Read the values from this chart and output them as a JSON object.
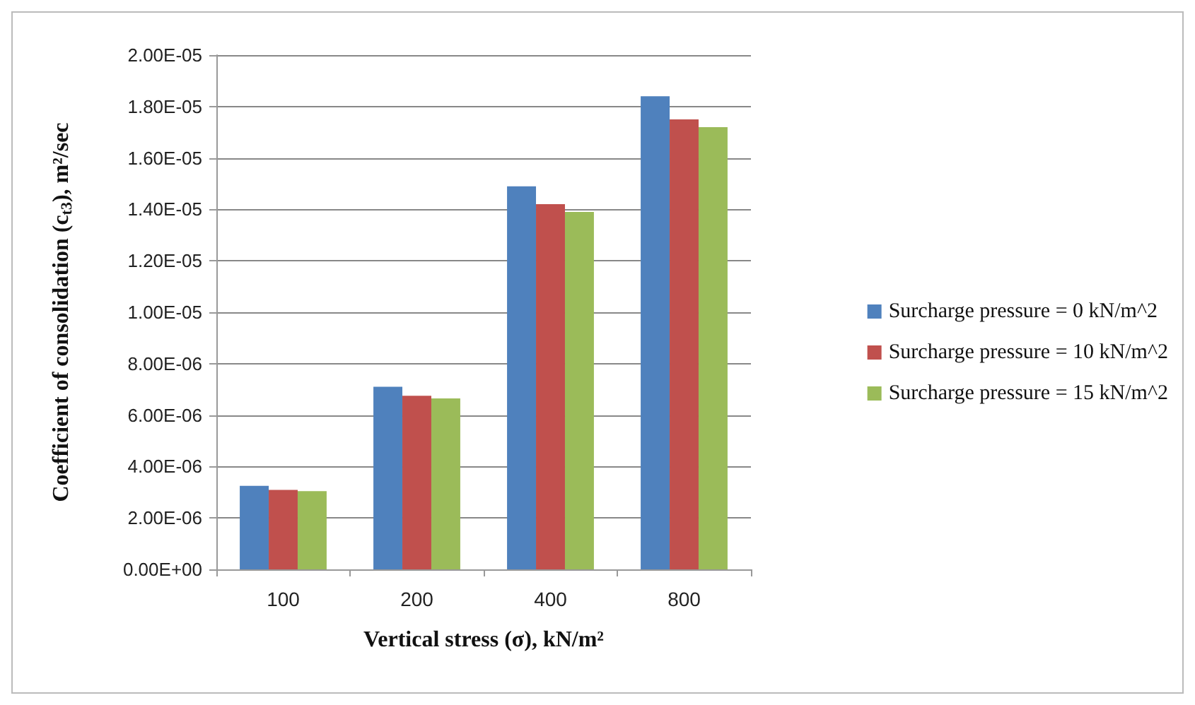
{
  "chart_data": {
    "type": "bar",
    "xlabel": "Vertical stress (σ), kN/m²",
    "ylabel": "Coefficient of consolidation (c$_{t3}$), m²/sec",
    "categories": [
      "100",
      "200",
      "400",
      "800"
    ],
    "series": [
      {
        "name": "Surcharge pressure = 0 kN/m^2",
        "color": "#4f81bd",
        "values": [
          3.25e-06,
          7.1e-06,
          1.49e-05,
          1.84e-05
        ]
      },
      {
        "name": "Surcharge pressure = 10 kN/m^2",
        "color": "#c0504d",
        "values": [
          3.09e-06,
          6.75e-06,
          1.42e-05,
          1.75e-05
        ]
      },
      {
        "name": "Surcharge pressure = 15 kN/m^2",
        "color": "#9bbb59",
        "values": [
          3.04e-06,
          6.65e-06,
          1.39e-05,
          1.72e-05
        ]
      }
    ],
    "ylim": [
      0,
      2e-05
    ],
    "yticks": [
      {
        "value": 0,
        "label": "0.00E+00"
      },
      {
        "value": 2e-06,
        "label": "2.00E-06"
      },
      {
        "value": 4e-06,
        "label": "4.00E-06"
      },
      {
        "value": 6e-06,
        "label": "6.00E-06"
      },
      {
        "value": 8e-06,
        "label": "8.00E-06"
      },
      {
        "value": 1e-05,
        "label": "1.00E-05"
      },
      {
        "value": 1.2e-05,
        "label": "1.20E-05"
      },
      {
        "value": 1.4e-05,
        "label": "1.40E-05"
      },
      {
        "value": 1.6e-05,
        "label": "1.60E-05"
      },
      {
        "value": 1.8e-05,
        "label": "1.80E-05"
      },
      {
        "value": 2e-05,
        "label": "2.00E-05"
      }
    ],
    "grid": "y",
    "legend": "right"
  }
}
